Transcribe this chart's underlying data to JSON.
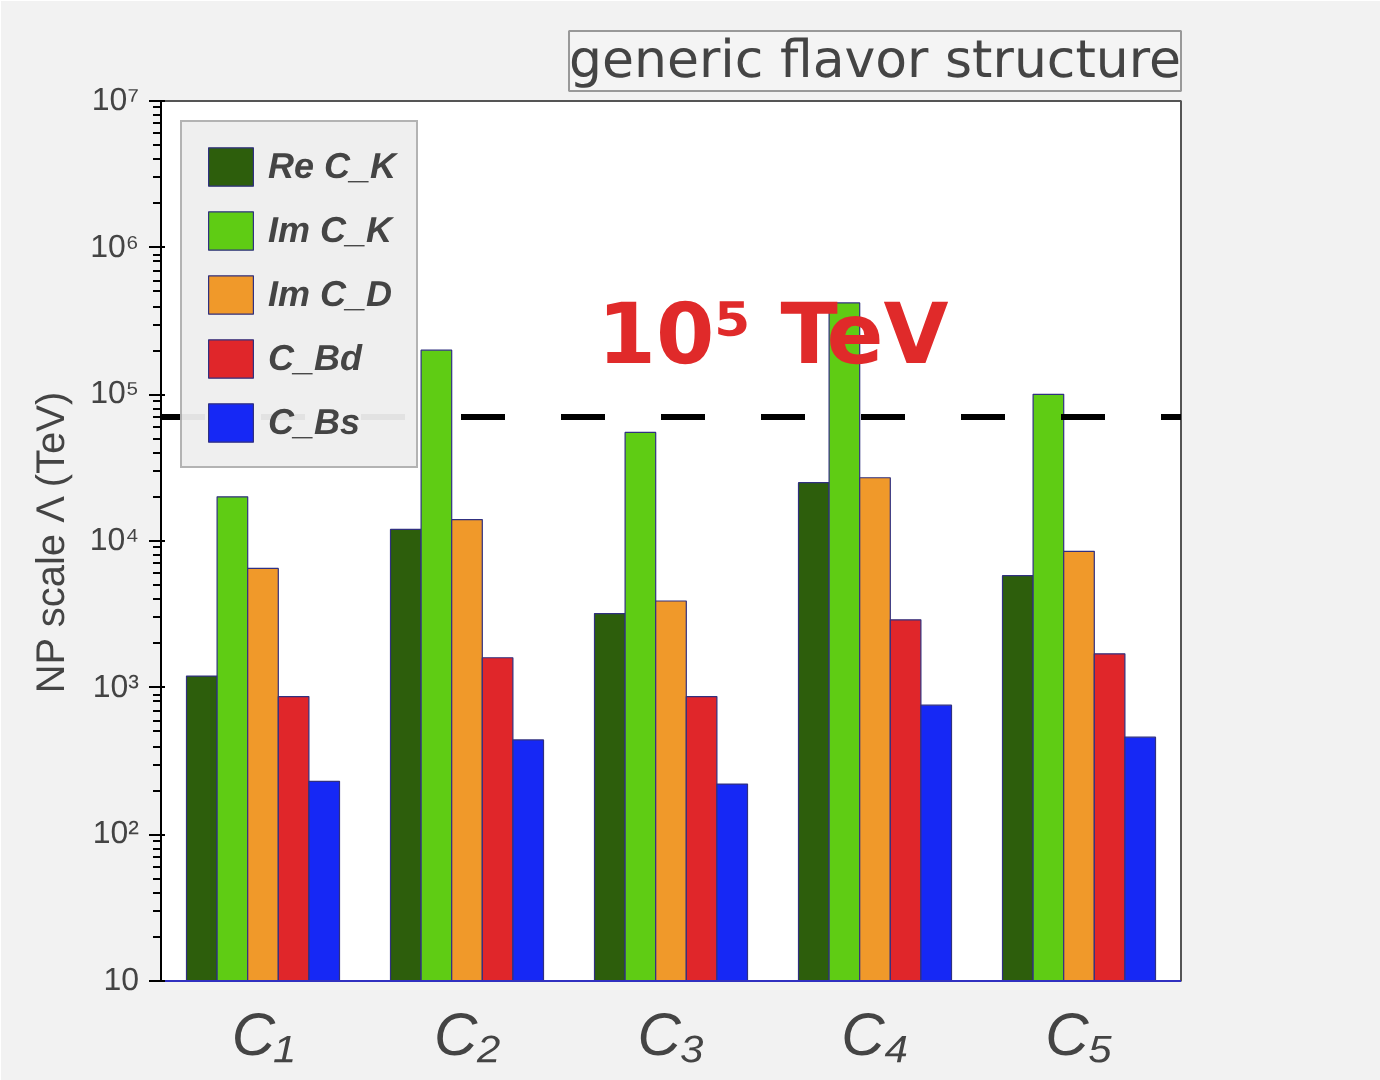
{
  "chart_data": {
    "type": "bar",
    "log": "y",
    "categories": [
      "C₁",
      "C₂",
      "C₃",
      "C₄",
      "C₅"
    ],
    "ylabel": "NP scale Λ (TeV)",
    "ylim": [
      10,
      10000000
    ],
    "yticks": [
      {
        "value": 10,
        "label": "10"
      },
      {
        "value": 100,
        "label": "10²"
      },
      {
        "value": 1000,
        "label": "10³"
      },
      {
        "value": 10000,
        "label": "10⁴"
      },
      {
        "value": 100000,
        "label": "10⁵"
      },
      {
        "value": 1000000,
        "label": "10⁶"
      },
      {
        "value": 10000000,
        "label": "10⁷"
      }
    ],
    "series": [
      {
        "name": "Re C_K",
        "color": "#2d5e0c",
        "values": [
          1200,
          12000,
          3200,
          25000,
          5800
        ]
      },
      {
        "name": "Im C_K",
        "color": "#5fcc14",
        "values": [
          20000,
          200000,
          55000,
          420000,
          100000
        ]
      },
      {
        "name": "Im C_D",
        "color": "#f0992a",
        "values": [
          6500,
          14000,
          3900,
          27000,
          8500
        ]
      },
      {
        "name": "C_Bd",
        "color": "#e0262a",
        "values": [
          870,
          1600,
          870,
          2900,
          1700
        ]
      },
      {
        "name": "C_Bs",
        "color": "#1628f5",
        "values": [
          230,
          440,
          220,
          760,
          460
        ]
      }
    ],
    "ref_lines": [
      {
        "axis": "y",
        "value": 70000,
        "label": "10⁵ TeV",
        "color": "#000000",
        "line_style": "dashed"
      }
    ],
    "annotations": [
      "generic flavor structure"
    ],
    "legend": "top left",
    "grid": false
  }
}
